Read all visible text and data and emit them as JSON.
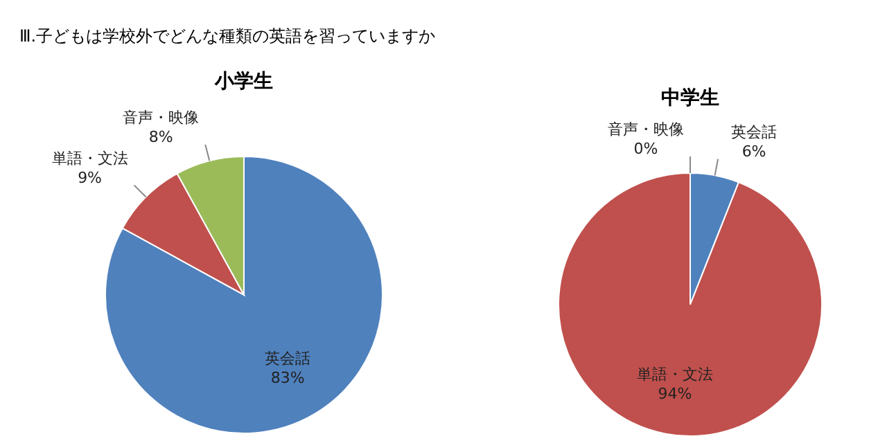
{
  "chart_data": [
    {
      "type": "pie",
      "title": "小学生",
      "annotations": [
        "Ⅲ.子どもは学校外でどんな種類の英語を習っていますか"
      ],
      "categories": [
        "英会話",
        "単語・文法",
        "音声・映像"
      ],
      "values": [
        83,
        9,
        8
      ],
      "value_labels": [
        "83%",
        "9%",
        "8%"
      ],
      "colors": [
        "#4f81bd",
        "#c0504d",
        "#9bbb59"
      ]
    },
    {
      "type": "pie",
      "title": "中学生",
      "categories": [
        "英会話",
        "単語・文法",
        "音声・映像"
      ],
      "values": [
        6,
        94,
        0
      ],
      "value_labels": [
        "6%",
        "94%",
        "0%"
      ],
      "colors": [
        "#4f81bd",
        "#c0504d",
        "#9bbb59"
      ]
    }
  ]
}
